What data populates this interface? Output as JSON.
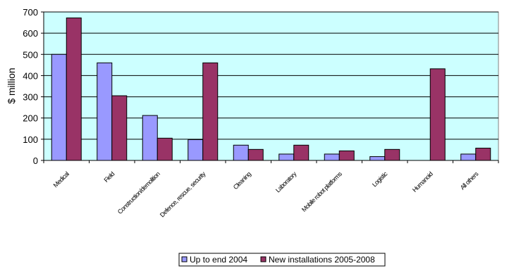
{
  "chart_data": {
    "type": "bar",
    "title": "",
    "xlabel": "",
    "ylabel": "$ million",
    "ylim": [
      0,
      700
    ],
    "y_ticks": [
      0,
      100,
      200,
      300,
      400,
      500,
      600,
      700
    ],
    "grid": true,
    "legend_position": "bottom",
    "plot_background": "#CCFFFF",
    "categories": [
      "Medical",
      "Field",
      "Construction/demolition",
      "Defence, rescue, security",
      "Cleaning",
      "Laboratory",
      "Mobile robot platforms",
      "Logistic",
      "Humanoid",
      "All others"
    ],
    "series": [
      {
        "name": "Up to end 2004",
        "color": "#9999FF",
        "values": [
          500,
          460,
          212,
          98,
          72,
          30,
          30,
          18,
          0,
          30
        ]
      },
      {
        "name": "New installations 2005-2008",
        "color": "#993366",
        "values": [
          672,
          305,
          105,
          460,
          52,
          72,
          45,
          52,
          432,
          58
        ]
      }
    ]
  }
}
